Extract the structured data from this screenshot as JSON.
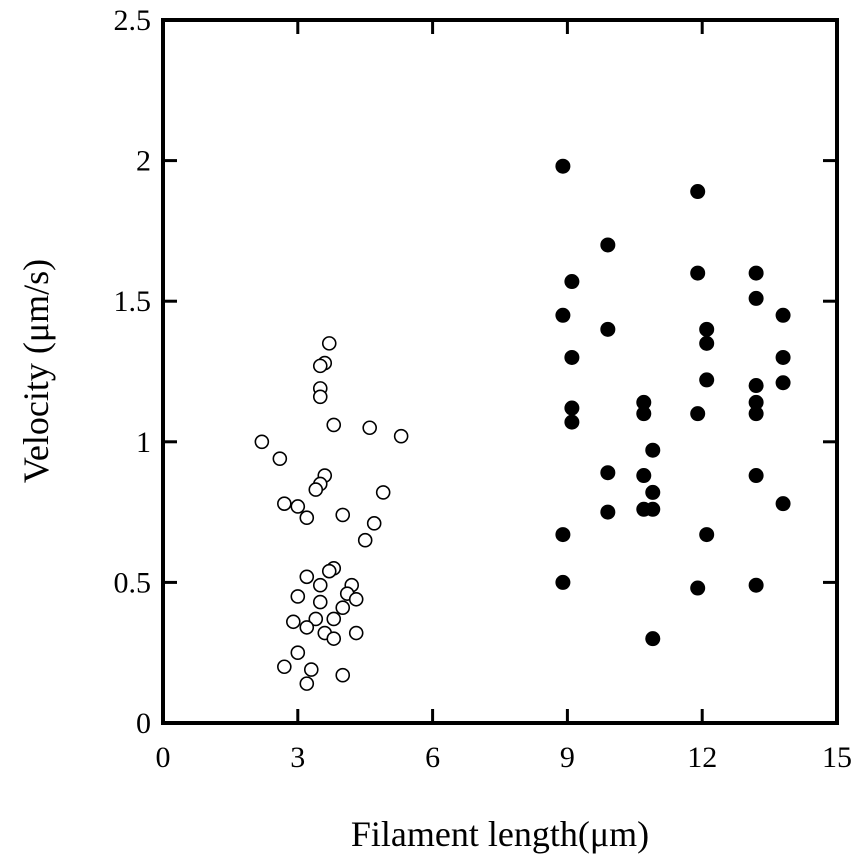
{
  "chart_data": {
    "type": "scatter",
    "title": "",
    "xlabel": "Filament length(μm)",
    "ylabel": "Velocity (μm/s)",
    "xlim": [
      0,
      15
    ],
    "ylim": [
      0,
      2.5
    ],
    "xticks": [
      0,
      3,
      6,
      9,
      12,
      15
    ],
    "xtick_labels": [
      "0",
      "3",
      "6",
      "9",
      "12",
      "15"
    ],
    "yticks": [
      0,
      0.5,
      1,
      1.5,
      2,
      2.5
    ],
    "ytick_labels": [
      "0",
      "0.5",
      "1",
      "1.5",
      "2",
      "2.5"
    ],
    "grid": false,
    "legend": "none",
    "series": [
      {
        "marker": "open-circle",
        "color": "#000000",
        "points": [
          [
            3.7,
            1.35
          ],
          [
            3.6,
            1.28
          ],
          [
            3.5,
            1.27
          ],
          [
            3.5,
            1.19
          ],
          [
            3.5,
            1.16
          ],
          [
            3.8,
            1.06
          ],
          [
            2.2,
            1.0
          ],
          [
            2.6,
            0.94
          ],
          [
            4.6,
            1.05
          ],
          [
            5.3,
            1.02
          ],
          [
            3.6,
            0.88
          ],
          [
            3.5,
            0.85
          ],
          [
            3.4,
            0.83
          ],
          [
            2.7,
            0.78
          ],
          [
            3.0,
            0.77
          ],
          [
            3.2,
            0.73
          ],
          [
            4.0,
            0.74
          ],
          [
            4.9,
            0.82
          ],
          [
            4.7,
            0.71
          ],
          [
            4.5,
            0.65
          ],
          [
            3.8,
            0.55
          ],
          [
            3.7,
            0.54
          ],
          [
            3.2,
            0.52
          ],
          [
            3.5,
            0.49
          ],
          [
            4.2,
            0.49
          ],
          [
            3.0,
            0.45
          ],
          [
            4.1,
            0.46
          ],
          [
            4.3,
            0.44
          ],
          [
            3.5,
            0.43
          ],
          [
            4.0,
            0.41
          ],
          [
            3.8,
            0.37
          ],
          [
            3.4,
            0.37
          ],
          [
            2.9,
            0.36
          ],
          [
            3.2,
            0.34
          ],
          [
            3.6,
            0.32
          ],
          [
            3.8,
            0.3
          ],
          [
            4.3,
            0.32
          ],
          [
            3.0,
            0.25
          ],
          [
            2.7,
            0.2
          ],
          [
            3.3,
            0.19
          ],
          [
            4.0,
            0.17
          ],
          [
            3.2,
            0.14
          ]
        ]
      },
      {
        "marker": "filled-circle",
        "color": "#000000",
        "points": [
          [
            8.9,
            1.98
          ],
          [
            9.1,
            1.57
          ],
          [
            8.9,
            1.45
          ],
          [
            9.1,
            1.3
          ],
          [
            9.1,
            1.12
          ],
          [
            9.1,
            1.07
          ],
          [
            8.9,
            0.67
          ],
          [
            8.9,
            0.5
          ],
          [
            9.9,
            1.7
          ],
          [
            9.9,
            1.4
          ],
          [
            9.9,
            0.89
          ],
          [
            9.9,
            0.75
          ],
          [
            10.7,
            1.14
          ],
          [
            10.7,
            1.1
          ],
          [
            10.9,
            0.97
          ],
          [
            10.7,
            0.88
          ],
          [
            10.9,
            0.82
          ],
          [
            10.7,
            0.76
          ],
          [
            10.9,
            0.76
          ],
          [
            10.9,
            0.3
          ],
          [
            11.9,
            1.89
          ],
          [
            11.9,
            1.6
          ],
          [
            12.1,
            1.4
          ],
          [
            12.1,
            1.35
          ],
          [
            12.1,
            1.22
          ],
          [
            11.9,
            1.1
          ],
          [
            12.1,
            0.67
          ],
          [
            11.9,
            0.48
          ],
          [
            13.2,
            1.6
          ],
          [
            13.2,
            1.51
          ],
          [
            13.2,
            1.2
          ],
          [
            13.2,
            1.14
          ],
          [
            13.2,
            1.1
          ],
          [
            13.2,
            0.88
          ],
          [
            13.2,
            0.49
          ],
          [
            13.8,
            1.45
          ],
          [
            13.8,
            1.3
          ],
          [
            13.8,
            1.21
          ],
          [
            13.8,
            0.78
          ]
        ]
      }
    ]
  }
}
